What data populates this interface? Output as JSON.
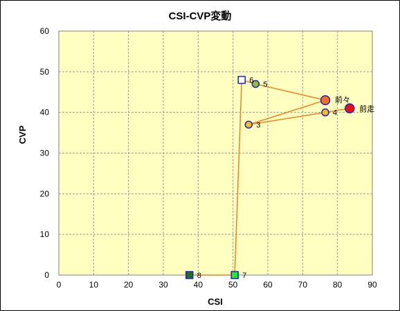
{
  "chart_data": {
    "type": "scatter",
    "title": "CSI-CVP変動",
    "xlabel": "CSI",
    "ylabel": "CVP",
    "xlim": [
      0,
      90
    ],
    "ylim": [
      0,
      60
    ],
    "x_ticks": [
      0,
      10,
      20,
      30,
      40,
      50,
      60,
      70,
      80,
      90
    ],
    "y_ticks": [
      0,
      10,
      20,
      30,
      40,
      50,
      60
    ],
    "grid": true,
    "colors": {
      "plot_background": "#ffffc0",
      "grid": "#9a9a9a",
      "line": "#f08020",
      "marker_border": "#2020c0"
    },
    "points": [
      {
        "label": "8",
        "x": 37.5,
        "y": 0,
        "marker": "square",
        "fill": "#207020"
      },
      {
        "label": "7",
        "x": 50.5,
        "y": 0,
        "marker": "square",
        "fill": "#20ee20"
      },
      {
        "label": "6",
        "x": 52.5,
        "y": 48,
        "marker": "square",
        "fill": "#ffffff"
      },
      {
        "label": "5",
        "x": 56.5,
        "y": 47,
        "marker": "circle",
        "fill": "#90c030"
      },
      {
        "label": "前々",
        "x": 76.5,
        "y": 43,
        "marker": "circle-large",
        "fill": "#f07020"
      },
      {
        "label": "3",
        "x": 54.5,
        "y": 37,
        "marker": "circle",
        "fill": "#f0c020"
      },
      {
        "label": "4",
        "x": 76.5,
        "y": 40,
        "marker": "circle",
        "fill": "#f0c020"
      },
      {
        "label": "前走",
        "x": 83.5,
        "y": 41,
        "marker": "circle-large",
        "fill": "#ee1010"
      }
    ]
  }
}
